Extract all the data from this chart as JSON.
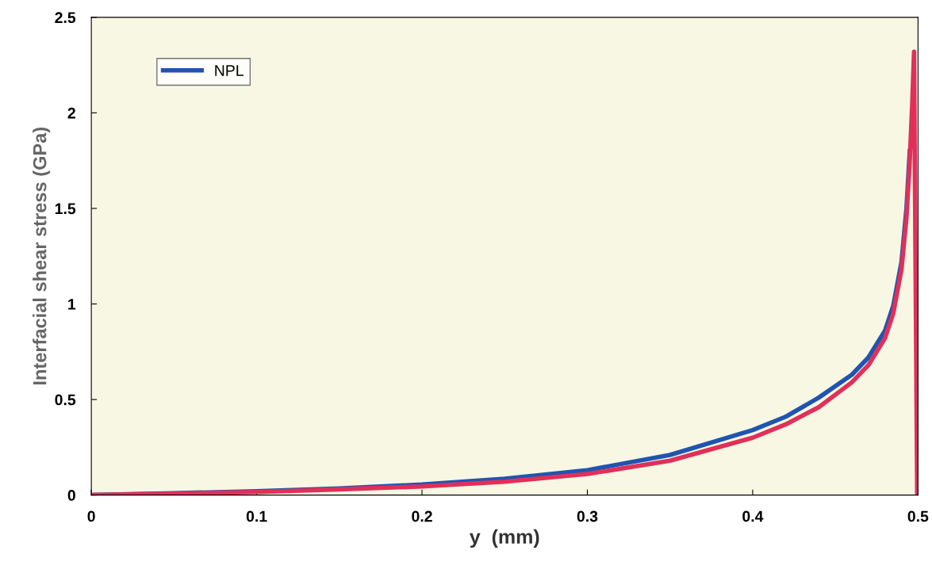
{
  "chart_data": {
    "type": "line",
    "xlabel": "y  (mm)",
    "ylabel": "Interfacial shear stress (GPa)",
    "xlim": [
      0,
      0.5
    ],
    "xticks": [
      0,
      0.1,
      0.2,
      0.3,
      0.4,
      0.5
    ],
    "ylim": [
      0,
      2.5
    ],
    "yticks": [
      0,
      0.5,
      1,
      1.5,
      2,
      2.5
    ],
    "grid": false,
    "legend": "top left",
    "marker": "none",
    "line_style": "solid",
    "series": [
      {
        "name": "NPL",
        "color": "#1f55b0",
        "x": [
          0,
          0.05,
          0.1,
          0.15,
          0.2,
          0.25,
          0.3,
          0.35,
          0.4,
          0.42,
          0.44,
          0.46,
          0.47,
          0.48,
          0.485,
          0.49,
          0.493,
          0.495
        ],
        "values": [
          0,
          0.01,
          0.02,
          0.035,
          0.055,
          0.085,
          0.13,
          0.21,
          0.34,
          0.41,
          0.51,
          0.63,
          0.72,
          0.86,
          0.99,
          1.22,
          1.5,
          1.8
        ]
      },
      {
        "color": "#e0305a",
        "x": [
          0,
          0.05,
          0.1,
          0.15,
          0.2,
          0.25,
          0.3,
          0.35,
          0.4,
          0.42,
          0.44,
          0.46,
          0.47,
          0.48,
          0.485,
          0.49,
          0.493,
          0.495,
          0.4965,
          0.4976,
          0.4985,
          0.4995
        ],
        "values": [
          0,
          0.008,
          0.016,
          0.03,
          0.045,
          0.07,
          0.11,
          0.18,
          0.3,
          0.37,
          0.46,
          0.59,
          0.68,
          0.82,
          0.95,
          1.18,
          1.45,
          1.75,
          2.05,
          2.32,
          1.2,
          0
        ]
      }
    ]
  }
}
